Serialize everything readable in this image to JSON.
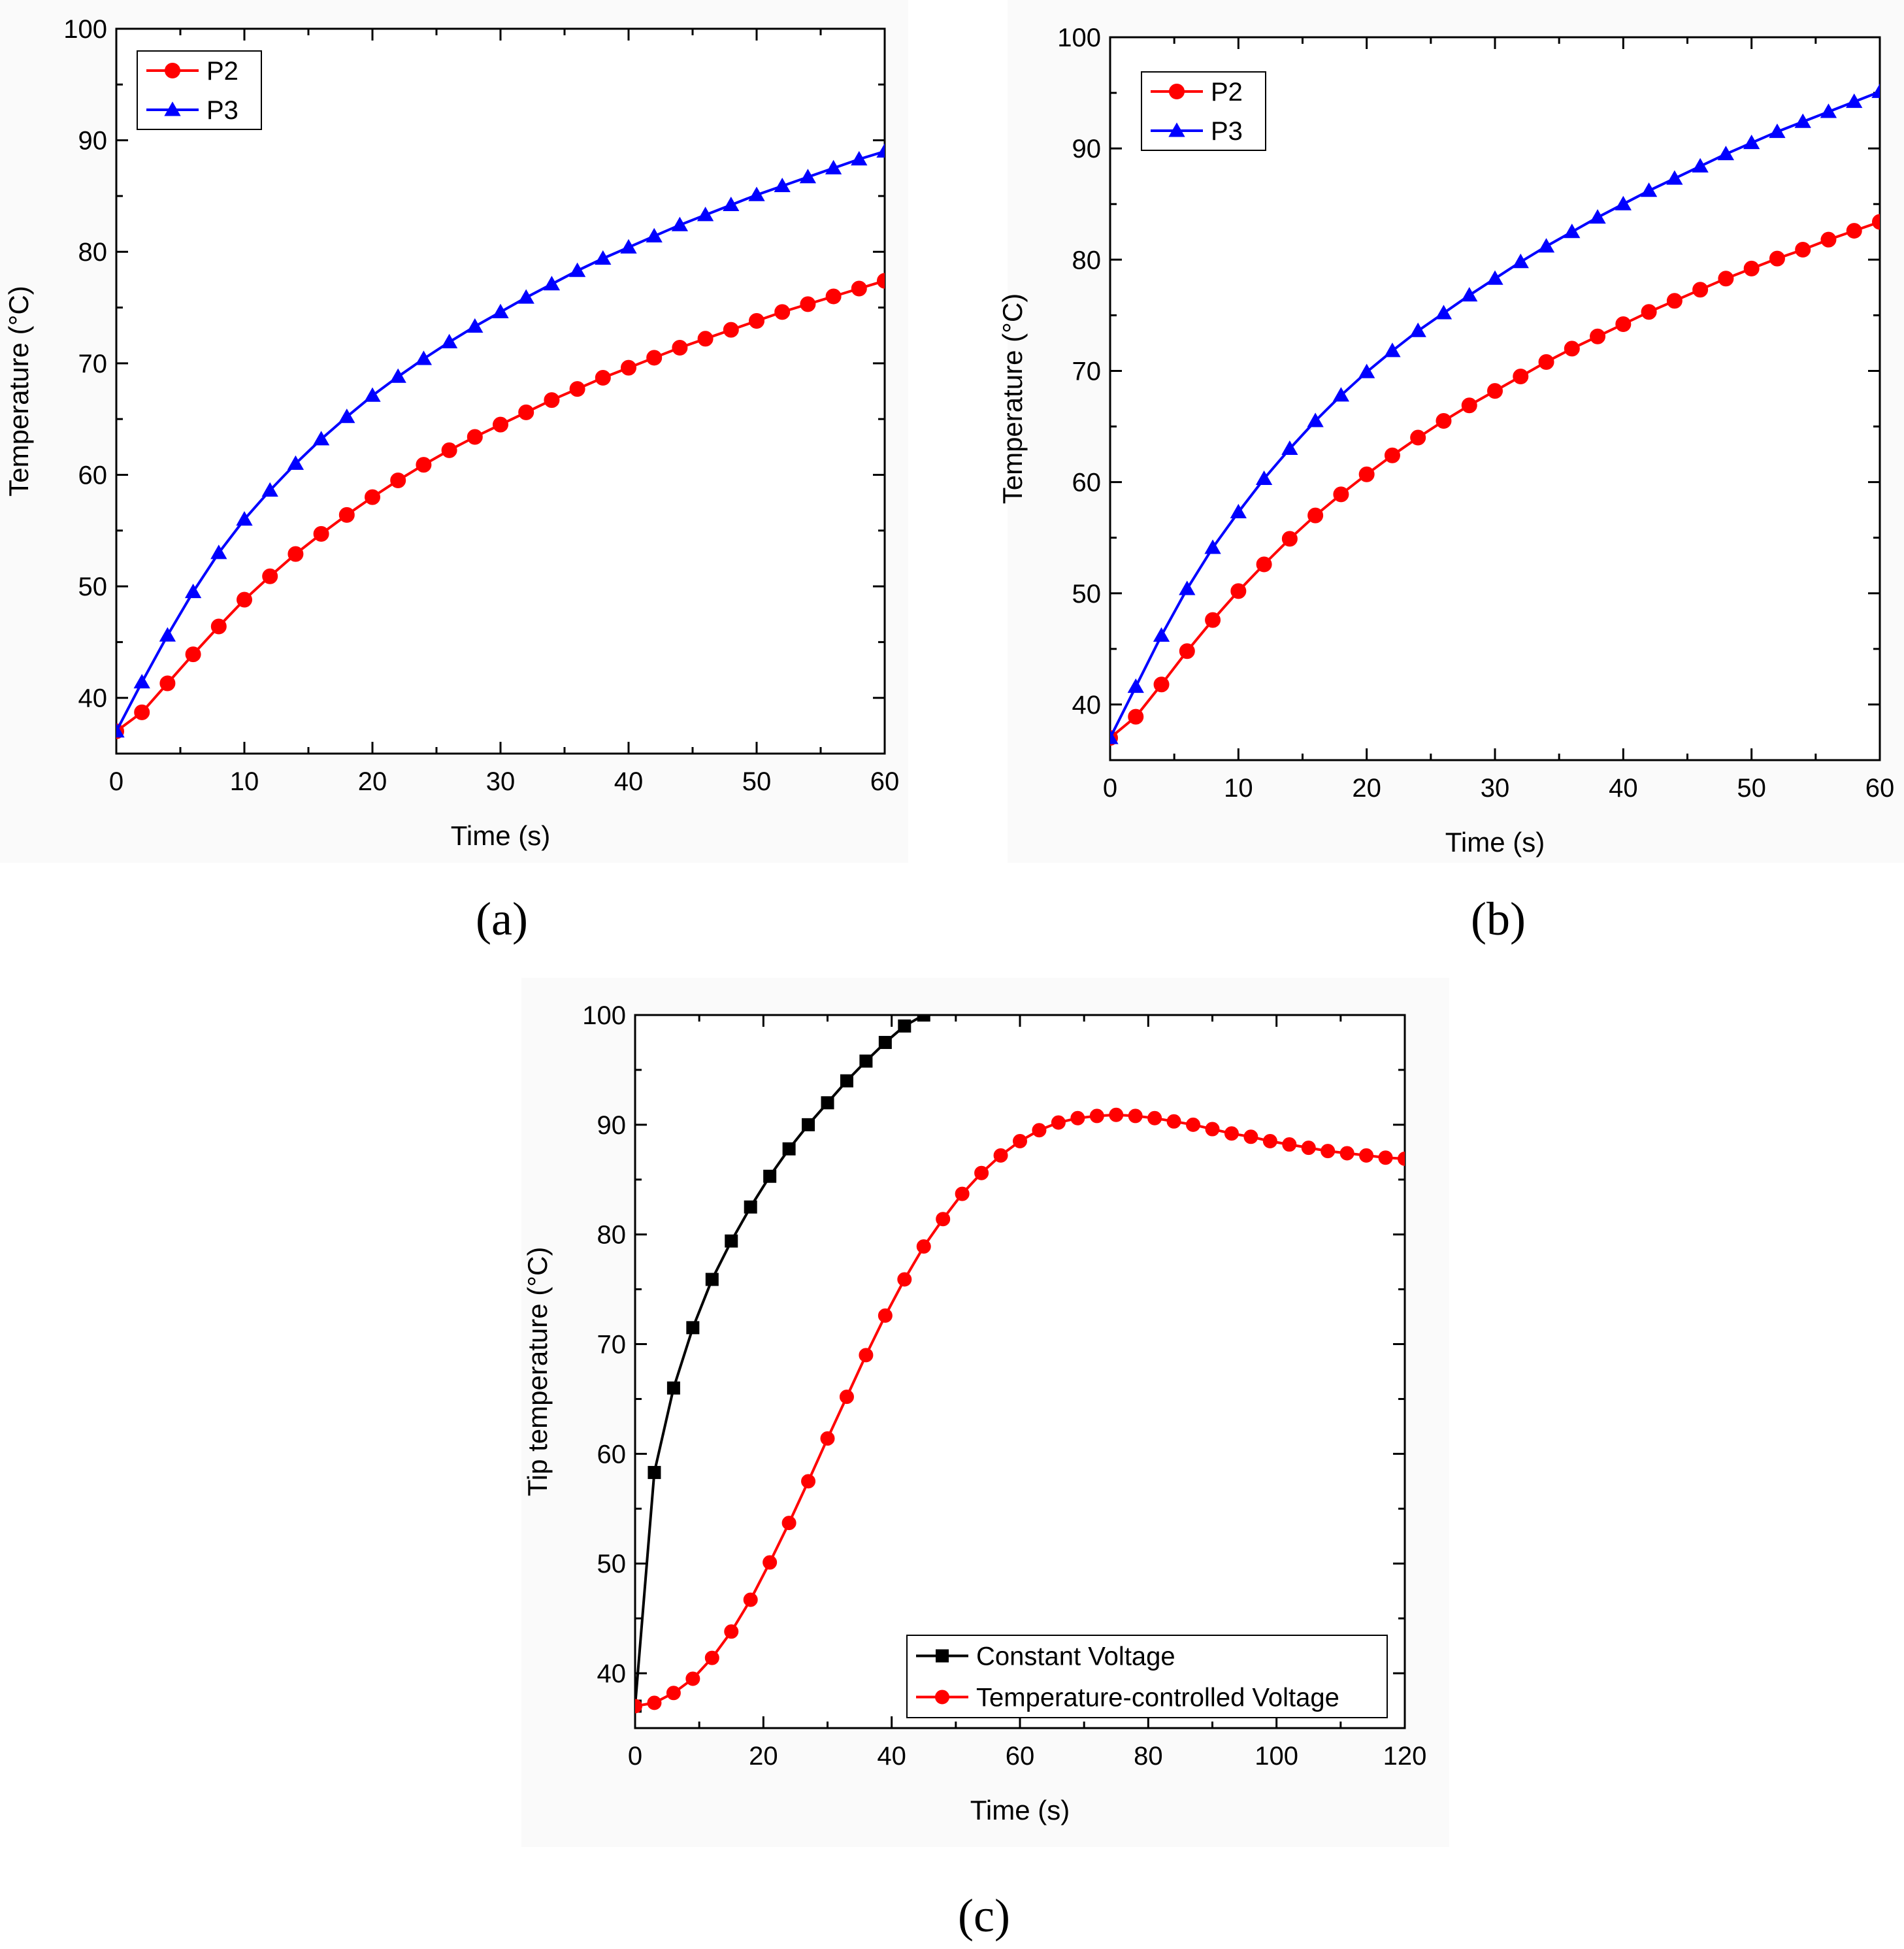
{
  "figure": {
    "captions": [
      "(a)",
      "(b)",
      "(c)"
    ]
  },
  "colors": {
    "red": "#ff0000",
    "blue": "#0000ff",
    "black": "#000000"
  },
  "chart_data": [
    {
      "type": "line",
      "panel": "a",
      "xlabel": "Time (s)",
      "ylabel": "Temperature (°C)",
      "xlim": [
        0,
        60
      ],
      "ylim": [
        35,
        100
      ],
      "xticks": [
        0,
        10,
        20,
        30,
        40,
        50,
        60
      ],
      "yticks": [
        40,
        50,
        60,
        70,
        80,
        90,
        100
      ],
      "legend_position": "top-left",
      "x": [
        0,
        2,
        4,
        6,
        8,
        10,
        12,
        14,
        16,
        18,
        20,
        22,
        24,
        26,
        28,
        30,
        32,
        34,
        36,
        38,
        40,
        42,
        44,
        46,
        48,
        50,
        52,
        54,
        56,
        58,
        60
      ],
      "series": [
        {
          "name": "P2",
          "marker": "circle",
          "color": "#ff0000",
          "values": [
            37.0,
            38.7,
            41.3,
            43.9,
            46.4,
            48.8,
            50.9,
            52.9,
            54.7,
            56.4,
            58.0,
            59.5,
            60.9,
            62.2,
            63.4,
            64.5,
            65.6,
            66.7,
            67.7,
            68.7,
            69.6,
            70.5,
            71.4,
            72.2,
            73.0,
            73.8,
            74.6,
            75.3,
            76.0,
            76.7,
            77.4
          ]
        },
        {
          "name": "P3",
          "marker": "triangle",
          "color": "#0000ff",
          "values": [
            37.0,
            41.4,
            45.6,
            49.5,
            53.0,
            56.0,
            58.6,
            61.0,
            63.2,
            65.2,
            67.1,
            68.8,
            70.4,
            71.9,
            73.3,
            74.6,
            75.9,
            77.1,
            78.3,
            79.4,
            80.4,
            81.4,
            82.4,
            83.3,
            84.2,
            85.1,
            85.9,
            86.7,
            87.5,
            88.3,
            89.0
          ]
        }
      ]
    },
    {
      "type": "line",
      "panel": "b",
      "xlabel": "Time (s)",
      "ylabel": "Temperature (°C)",
      "xlim": [
        0,
        60
      ],
      "ylim": [
        35,
        100
      ],
      "xticks": [
        0,
        10,
        20,
        30,
        40,
        50,
        60
      ],
      "yticks": [
        40,
        50,
        60,
        70,
        80,
        90,
        100
      ],
      "legend_position": "top-left",
      "x": [
        0,
        2,
        4,
        6,
        8,
        10,
        12,
        14,
        16,
        18,
        20,
        22,
        24,
        26,
        28,
        30,
        32,
        34,
        36,
        38,
        40,
        42,
        44,
        46,
        48,
        50,
        52,
        54,
        56,
        58,
        60
      ],
      "series": [
        {
          "name": "P2",
          "marker": "circle",
          "color": "#ff0000",
          "values": [
            37.0,
            38.9,
            41.8,
            44.8,
            47.6,
            50.2,
            52.6,
            54.9,
            57.0,
            58.9,
            60.7,
            62.4,
            64.0,
            65.5,
            66.9,
            68.2,
            69.5,
            70.8,
            72.0,
            73.1,
            74.2,
            75.3,
            76.3,
            77.3,
            78.3,
            79.2,
            80.1,
            80.9,
            81.8,
            82.6,
            83.4
          ]
        },
        {
          "name": "P3",
          "marker": "triangle",
          "color": "#0000ff",
          "values": [
            37.0,
            41.6,
            46.2,
            50.4,
            54.1,
            57.3,
            60.3,
            63.0,
            65.5,
            67.8,
            69.9,
            71.8,
            73.6,
            75.2,
            76.8,
            78.3,
            79.8,
            81.2,
            82.5,
            83.8,
            85.0,
            86.2,
            87.3,
            88.4,
            89.5,
            90.5,
            91.5,
            92.4,
            93.3,
            94.2,
            95.1
          ]
        }
      ]
    },
    {
      "type": "line",
      "panel": "c",
      "xlabel": "Time (s)",
      "ylabel": "Tip temperature (°C)",
      "xlim": [
        0,
        120
      ],
      "ylim": [
        35,
        100
      ],
      "xticks": [
        0,
        20,
        40,
        60,
        80,
        100,
        120
      ],
      "yticks": [
        40,
        50,
        60,
        70,
        80,
        90,
        100
      ],
      "legend_position": "bottom-right",
      "series": [
        {
          "name": "Constant Voltage",
          "marker": "square",
          "color": "#000000",
          "x": [
            0,
            3,
            6,
            9,
            12,
            15,
            18,
            21,
            24,
            27,
            30,
            33,
            36,
            39,
            42,
            45
          ],
          "values": [
            37.0,
            58.3,
            66.0,
            71.5,
            75.9,
            79.4,
            82.5,
            85.3,
            87.8,
            90.0,
            92.0,
            94.0,
            95.8,
            97.5,
            99.0,
            100.0
          ]
        },
        {
          "name": "Temperature-controlled Voltage",
          "marker": "circle",
          "color": "#ff0000",
          "x": [
            0,
            3,
            6,
            9,
            12,
            15,
            18,
            21,
            24,
            27,
            30,
            33,
            36,
            39,
            42,
            45,
            48,
            51,
            54,
            57,
            60,
            63,
            66,
            69,
            72,
            75,
            78,
            81,
            84,
            87,
            90,
            93,
            96,
            99,
            102,
            105,
            108,
            111,
            114,
            117,
            120
          ],
          "values": [
            37.0,
            37.3,
            38.2,
            39.5,
            41.4,
            43.8,
            46.7,
            50.1,
            53.7,
            57.5,
            61.4,
            65.2,
            69.0,
            72.6,
            75.9,
            78.9,
            81.4,
            83.7,
            85.6,
            87.2,
            88.5,
            89.5,
            90.2,
            90.6,
            90.8,
            90.9,
            90.8,
            90.6,
            90.3,
            90.0,
            89.6,
            89.2,
            88.9,
            88.5,
            88.2,
            87.9,
            87.6,
            87.4,
            87.2,
            87.0,
            86.9
          ]
        }
      ]
    }
  ]
}
